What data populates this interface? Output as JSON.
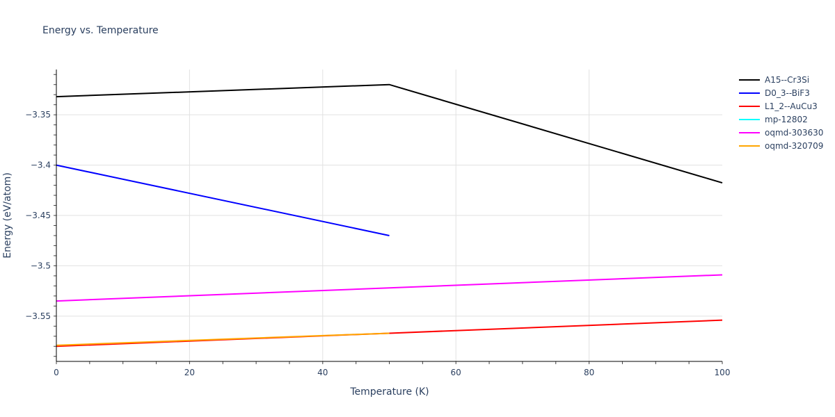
{
  "title": "Energy vs. Temperature",
  "axes": {
    "xlabel": "Temperature (K)",
    "ylabel": "Energy (eV/atom)",
    "xticks": [
      "0",
      "20",
      "40",
      "60",
      "80",
      "100"
    ],
    "yticks": [
      "−3.35",
      "−3.4",
      "−3.45",
      "−3.5",
      "−3.55"
    ]
  },
  "legend": [
    {
      "name": "A15--Cr3Si",
      "color": "#000000"
    },
    {
      "name": "D0_3--BiF3",
      "color": "#0000ff"
    },
    {
      "name": "L1_2--AuCu3",
      "color": "#ff0000"
    },
    {
      "name": "mp-12802",
      "color": "#00ffff"
    },
    {
      "name": "oqmd-303630",
      "color": "#ff00ff"
    },
    {
      "name": "oqmd-320709",
      "color": "#ffa500"
    }
  ],
  "chart_data": {
    "type": "line",
    "title": "Energy vs. Temperature",
    "xlabel": "Temperature (K)",
    "ylabel": "Energy (eV/atom)",
    "xlim": [
      0,
      100
    ],
    "ylim": [
      -3.595,
      -3.305
    ],
    "grid": true,
    "legend_position": "right",
    "series": [
      {
        "name": "A15--Cr3Si",
        "color": "#000000",
        "x": [
          0,
          50,
          100
        ],
        "y": [
          -3.332,
          -3.32,
          -3.4176
        ]
      },
      {
        "name": "D0_3--BiF3",
        "color": "#0000ff",
        "x": [
          0,
          50
        ],
        "y": [
          -3.4,
          -3.47
        ]
      },
      {
        "name": "L1_2--AuCu3",
        "color": "#ff0000",
        "x": [
          0,
          50,
          100
        ],
        "y": [
          -3.58,
          -3.567,
          -3.554
        ]
      },
      {
        "name": "mp-12802",
        "color": "#00ffff",
        "x": [],
        "y": []
      },
      {
        "name": "oqmd-303630",
        "color": "#ff00ff",
        "x": [
          0,
          100
        ],
        "y": [
          -3.535,
          -3.509
        ]
      },
      {
        "name": "oqmd-320709",
        "color": "#ffa500",
        "x": [
          0,
          50
        ],
        "y": [
          -3.579,
          -3.567
        ]
      }
    ]
  }
}
